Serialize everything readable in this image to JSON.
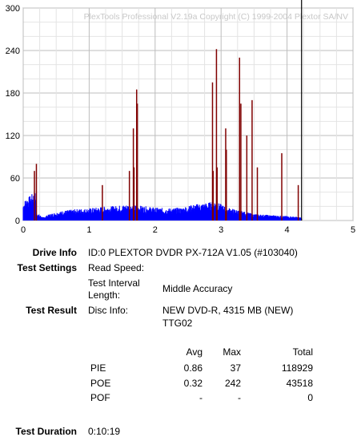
{
  "chart_data": {
    "type": "bar",
    "title": "PlexTools Professional V2.19a Copyright (C) 1999-2004 Plextor SA/NV",
    "xlim": [
      0,
      5
    ],
    "ylim": [
      0,
      300
    ],
    "x_ticks": [
      "0",
      "1",
      "2",
      "3",
      "4",
      "5"
    ],
    "y_ticks": [
      "0",
      "60",
      "120",
      "180",
      "240",
      "300"
    ],
    "grid": true,
    "disc_end_marker_x": 4.22,
    "series": [
      {
        "color": "#0000ff",
        "baseline_profile": [
          [
            0.0,
            22
          ],
          [
            0.05,
            28
          ],
          [
            0.1,
            30
          ],
          [
            0.15,
            34
          ],
          [
            0.19,
            36
          ],
          [
            0.2,
            10
          ],
          [
            0.3,
            4
          ],
          [
            0.4,
            8
          ],
          [
            0.6,
            12
          ],
          [
            0.8,
            14
          ],
          [
            1.0,
            15
          ],
          [
            1.2,
            17
          ],
          [
            1.4,
            18
          ],
          [
            1.6,
            20
          ],
          [
            1.8,
            18
          ],
          [
            2.0,
            16
          ],
          [
            2.2,
            15
          ],
          [
            2.4,
            16
          ],
          [
            2.6,
            20
          ],
          [
            2.8,
            22
          ],
          [
            2.9,
            24
          ],
          [
            3.0,
            20
          ],
          [
            3.1,
            16
          ],
          [
            3.3,
            12
          ],
          [
            3.5,
            8
          ],
          [
            3.7,
            7
          ],
          [
            3.9,
            6
          ],
          [
            4.1,
            5
          ],
          [
            4.2,
            4
          ],
          [
            4.22,
            3
          ]
        ]
      },
      {
        "color": "#800000",
        "spikes": [
          {
            "x": 0.17,
            "y": 70
          },
          {
            "x": 0.2,
            "y": 80
          },
          {
            "x": 1.2,
            "y": 50
          },
          {
            "x": 1.61,
            "y": 70
          },
          {
            "x": 1.67,
            "y": 130
          },
          {
            "x": 1.68,
            "y": 75
          },
          {
            "x": 1.72,
            "y": 185
          },
          {
            "x": 1.73,
            "y": 165
          },
          {
            "x": 2.87,
            "y": 195
          },
          {
            "x": 2.88,
            "y": 70
          },
          {
            "x": 2.93,
            "y": 242
          },
          {
            "x": 2.94,
            "y": 75
          },
          {
            "x": 3.07,
            "y": 130
          },
          {
            "x": 3.08,
            "y": 100
          },
          {
            "x": 3.28,
            "y": 230
          },
          {
            "x": 3.3,
            "y": 165
          },
          {
            "x": 3.39,
            "y": 120
          },
          {
            "x": 3.47,
            "y": 170
          },
          {
            "x": 3.55,
            "y": 75
          },
          {
            "x": 3.92,
            "y": 95
          },
          {
            "x": 4.17,
            "y": 50
          }
        ]
      }
    ]
  },
  "info": {
    "drive_label": "Drive Info",
    "drive_value": "ID:0 PLEXTOR DVDR PX-712A V1.05 (#103040)",
    "settings_label": "Test Settings",
    "read_speed_label": "Read Speed:",
    "interval_label_1": "Test Interval",
    "interval_label_2": "Length:",
    "interval_value": "Middle Accuracy",
    "result_label": "Test Result",
    "disc_info_label": "Disc Info:",
    "disc_info_value_1": "NEW DVD-R, 4315 MB (NEW)",
    "disc_info_value_2": "TTG02",
    "duration_label": "Test Duration",
    "duration_value": "0:10:19"
  },
  "results": {
    "headers": [
      "Avg",
      "Max",
      "Total"
    ],
    "rows": [
      {
        "name": "PIE",
        "avg": "0.86",
        "max": "37",
        "total": "118929"
      },
      {
        "name": "POE",
        "avg": "0.32",
        "max": "242",
        "total": "43518"
      },
      {
        "name": "POF",
        "avg": "-",
        "max": "-",
        "total": "0"
      }
    ]
  }
}
